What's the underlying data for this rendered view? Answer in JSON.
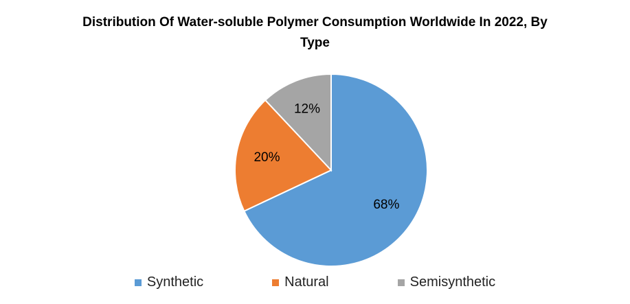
{
  "chart_data": {
    "type": "pie",
    "title": "Distribution Of Water-soluble Polymer Consumption Worldwide In 2022, By Type",
    "categories": [
      "Synthetic",
      "Natural",
      "Semisynthetic"
    ],
    "values": [
      68,
      20,
      12
    ],
    "value_labels": [
      "68%",
      "20%",
      "12%"
    ],
    "colors": [
      "#5b9bd5",
      "#ed7d31",
      "#a5a5a5"
    ],
    "legend": "bottom"
  }
}
